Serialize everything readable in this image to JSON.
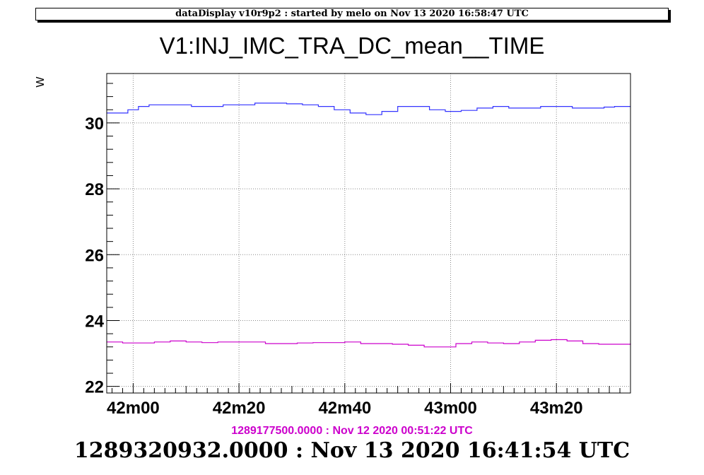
{
  "header": {
    "banner": "dataDisplay v10r9p2 : started by melo on Nov 13 2020 16:58:47 UTC"
  },
  "chart_data": {
    "type": "line",
    "title": "V1:INJ_IMC_TRA_DC_mean__TIME",
    "ylabel": "W",
    "xlabel": "",
    "ylim": [
      21.8,
      31.5
    ],
    "y_ticks": [
      22,
      24,
      26,
      28,
      30
    ],
    "x_tick_labels": [
      "42m00",
      "42m20",
      "42m40",
      "43m00",
      "43m20"
    ],
    "x_tick_positions_s": [
      0,
      20,
      40,
      60,
      80
    ],
    "xlim_s": [
      -5,
      94
    ],
    "grid": true,
    "series": [
      {
        "color": "#3333ff",
        "x": [
          -5,
          -3,
          -1,
          1,
          3,
          5,
          8,
          11,
          14,
          17,
          20,
          23,
          26,
          29,
          32,
          35,
          38,
          41,
          44,
          47,
          50,
          53,
          56,
          59,
          62,
          65,
          68,
          71,
          74,
          77,
          80,
          83,
          86,
          89,
          91,
          94
        ],
        "values": [
          30.3,
          30.3,
          30.4,
          30.5,
          30.55,
          30.55,
          30.55,
          30.5,
          30.5,
          30.55,
          30.55,
          30.6,
          30.6,
          30.58,
          30.55,
          30.5,
          30.4,
          30.3,
          30.25,
          30.35,
          30.5,
          30.5,
          30.4,
          30.35,
          30.38,
          30.45,
          30.5,
          30.45,
          30.45,
          30.5,
          30.5,
          30.45,
          30.45,
          30.48,
          30.5,
          30.5
        ]
      },
      {
        "color": "#cc00cc",
        "x": [
          -5,
          -2,
          1,
          4,
          7,
          10,
          13,
          16,
          19,
          22,
          25,
          28,
          31,
          34,
          37,
          40,
          43,
          46,
          49,
          52,
          55,
          58,
          61,
          64,
          67,
          70,
          73,
          76,
          79,
          82,
          85,
          88,
          91,
          94
        ],
        "values": [
          23.35,
          23.32,
          23.32,
          23.35,
          23.38,
          23.35,
          23.33,
          23.35,
          23.35,
          23.35,
          23.3,
          23.3,
          23.32,
          23.33,
          23.33,
          23.35,
          23.3,
          23.3,
          23.28,
          23.25,
          23.2,
          23.2,
          23.3,
          23.35,
          23.32,
          23.3,
          23.35,
          23.4,
          23.42,
          23.38,
          23.3,
          23.28,
          23.28,
          23.3
        ]
      }
    ]
  },
  "footer": {
    "ref_time": "1289177500.0000 : Nov 12 2020 00:51:22 UTC",
    "main_time": "1289320932.0000 : Nov 13 2020 16:41:54 UTC"
  }
}
